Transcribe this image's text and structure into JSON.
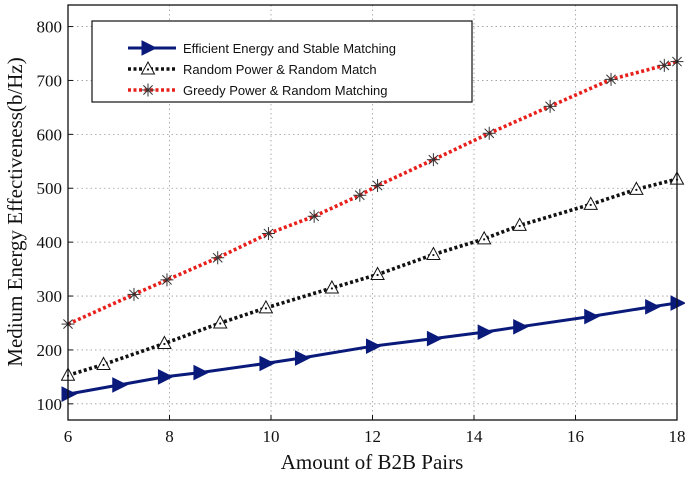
{
  "chart_data": {
    "type": "line",
    "title": "",
    "xlabel": "Amount of B2B Pairs",
    "ylabel": "Medium Energy Effectiveness(b/Hz)",
    "xlim": [
      6,
      18
    ],
    "ylim": [
      70,
      840
    ],
    "xticks": [
      6,
      8,
      10,
      12,
      14,
      16,
      18
    ],
    "yticks": [
      100,
      200,
      300,
      400,
      500,
      600,
      700,
      800
    ],
    "grid": true,
    "legend_position": "top-left",
    "series": [
      {
        "name": "Efficient Energy and Stable Matching",
        "color": "#0a1a7a",
        "line_style": "solid",
        "marker": "triangle-right",
        "x": [
          6,
          7,
          7.9,
          8.6,
          9.9,
          10.6,
          12,
          13.2,
          14.2,
          14.9,
          16.3,
          17.5,
          18
        ],
        "y": [
          118,
          135,
          150,
          158,
          175,
          185,
          207,
          221,
          233,
          243,
          262,
          280,
          287
        ]
      },
      {
        "name": "Random Power & Random Match",
        "color": "#111111",
        "line_style": "dotted",
        "marker": "triangle-up",
        "x": [
          6,
          6.7,
          7.9,
          9,
          9.9,
          11.2,
          12.1,
          13.2,
          14.2,
          14.9,
          16.3,
          17.2,
          18
        ],
        "y": [
          153,
          173,
          212,
          250,
          278,
          315,
          340,
          377,
          406,
          431,
          470,
          498,
          517
        ]
      },
      {
        "name": "Greedy Power & Random Matching",
        "color": "#e8201c",
        "line_style": "dotted",
        "marker": "asterisk",
        "x": [
          6,
          7.3,
          7.95,
          8.95,
          9.95,
          10.85,
          11.75,
          12.1,
          13.2,
          14.3,
          15.5,
          16.7,
          17.75,
          18
        ],
        "y": [
          248,
          303,
          330,
          371,
          416,
          448,
          487,
          505,
          553,
          602,
          652,
          702,
          728,
          735
        ]
      }
    ]
  }
}
